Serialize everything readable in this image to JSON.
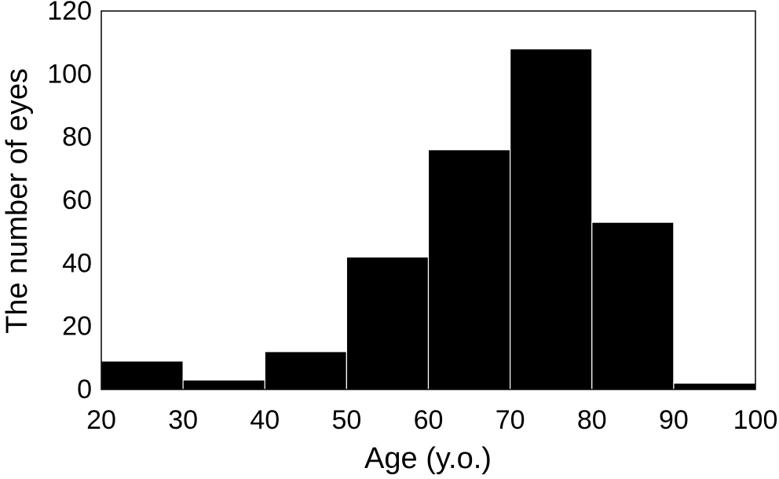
{
  "chart_data": {
    "type": "bar",
    "title": "",
    "xlabel": "Age (y.o.)",
    "ylabel": "The number of eyes",
    "bin_edges": [
      20,
      30,
      40,
      50,
      60,
      70,
      80,
      90,
      100
    ],
    "values": [
      9,
      3,
      12,
      42,
      76,
      108,
      53,
      2
    ],
    "xlim": [
      20,
      100
    ],
    "ylim": [
      0,
      120
    ],
    "xticks": [
      20,
      30,
      40,
      50,
      60,
      70,
      80,
      90,
      100
    ],
    "xtick_labels": [
      "20",
      "30",
      "40",
      "50",
      "60",
      "70",
      "80",
      "90",
      "100"
    ],
    "yticks": [
      0,
      20,
      40,
      60,
      80,
      100,
      120
    ],
    "ytick_labels": [
      "0",
      "20",
      "40",
      "60",
      "80",
      "100",
      "120"
    ],
    "grid": false,
    "bar_color": "#000000",
    "edge_color": "#ffffff"
  }
}
